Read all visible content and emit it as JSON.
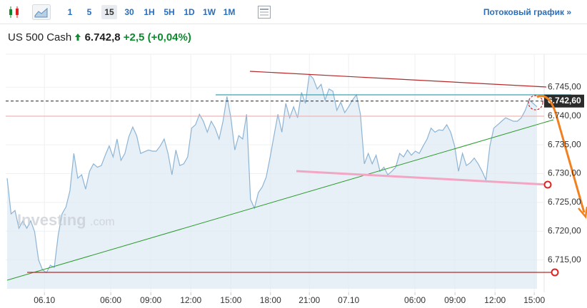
{
  "toolbar": {
    "intervals": [
      "1",
      "5",
      "15",
      "30",
      "1H",
      "5H",
      "1D",
      "1W",
      "1M"
    ],
    "selected_interval": 2,
    "streaming_link": "Потоковый график »"
  },
  "header": {
    "instrument": "US 500 Cash",
    "price": "6.742,8",
    "change": "+2,5",
    "change_percent": "(+0,04%)"
  },
  "chart_data": {
    "type": "area",
    "color": "#8db4d4",
    "fill": "#dde9f3",
    "watermark": [
      "Investing",
      ".com"
    ],
    "values": [
      6729.2,
      6723.0,
      6723.6,
      6720.5,
      6721.8,
      6720.5,
      6721.8,
      6719.9,
      6715.0,
      6713.3,
      6712.8,
      6714.1,
      6713.7,
      6719.3,
      6723.0,
      6724.2,
      6727.0,
      6733.5,
      6729.2,
      6729.8,
      6727.3,
      6730.4,
      6731.7,
      6731.1,
      6731.4,
      6733.2,
      6734.8,
      6732.9,
      6736.0,
      6732.3,
      6733.5,
      6736.4,
      6738.1,
      6736.6,
      6733.5,
      6733.8,
      6734.1,
      6733.9,
      6733.9,
      6734.8,
      6736.0,
      6733.5,
      6729.8,
      6734.1,
      6731.4,
      6731.7,
      6732.9,
      6737.9,
      6738.5,
      6740.3,
      6739.1,
      6737.2,
      6739.1,
      6737.9,
      6736.0,
      6739.1,
      6743.4,
      6739.7,
      6734.1,
      6736.6,
      6736.0,
      6740.3,
      6725.5,
      6724.0,
      6726.7,
      6727.7,
      6729.4,
      6732.9,
      6736.6,
      6740.3,
      6737.2,
      6742.2,
      6739.7,
      6741.6,
      6739.7,
      6744.1,
      6742.2,
      6747.2,
      6746.5,
      6744.7,
      6745.5,
      6742.8,
      6744.7,
      6744.3,
      6741.0,
      6742.4,
      6740.6,
      6741.6,
      6742.8,
      6743.7,
      6740.3,
      6731.7,
      6733.5,
      6731.7,
      6733.2,
      6730.4,
      6731.1,
      6729.8,
      6730.4,
      6731.1,
      6733.5,
      6732.9,
      6734.1,
      6733.2,
      6733.9,
      6733.5,
      6734.8,
      6736.0,
      6737.9,
      6737.2,
      6737.6,
      6737.5,
      6738.5,
      6737.2,
      6734.8,
      6730.4,
      6733.5,
      6731.4,
      6731.9,
      6732.7,
      6731.7,
      6730.4,
      6728.9,
      6734.8,
      6737.9,
      6738.5,
      6739.1,
      6739.7,
      6739.4,
      6739.1,
      6739.1,
      6739.7,
      6741.0,
      6742.8,
      6742.2,
      6741.6
    ],
    "xlim": [
      0,
      135
    ],
    "xticks": [
      {
        "value": 9.5,
        "label": "06.10"
      },
      {
        "value": 26.4,
        "label": "06:00"
      },
      {
        "value": 36.6,
        "label": "09:00"
      },
      {
        "value": 46.8,
        "label": "12:00"
      },
      {
        "value": 57,
        "label": "15:00"
      },
      {
        "value": 67.1,
        "label": "18:00"
      },
      {
        "value": 77,
        "label": "21:00"
      },
      {
        "value": 87,
        "label": "07.10"
      },
      {
        "value": 103.9,
        "label": "06:00"
      },
      {
        "value": 114.1,
        "label": "09:00"
      },
      {
        "value": 124.3,
        "label": "12:00"
      },
      {
        "value": 134.3,
        "label": "15:00"
      }
    ],
    "ylim": [
      6710,
      6750
    ],
    "yticks": [
      {
        "value": 6715,
        "label": "6.715,00"
      },
      {
        "value": 6720,
        "label": "6.720,00"
      },
      {
        "value": 6725,
        "label": "6.725,00"
      },
      {
        "value": 6730,
        "label": "6.730,00"
      },
      {
        "value": 6735,
        "label": "6.735,00"
      },
      {
        "value": 6740,
        "label": "6.740,00"
      },
      {
        "value": 6745,
        "label": "6.745,00"
      }
    ],
    "last_price": {
      "value": 6742.6,
      "label": "6.742,60"
    },
    "grid": true
  }
}
